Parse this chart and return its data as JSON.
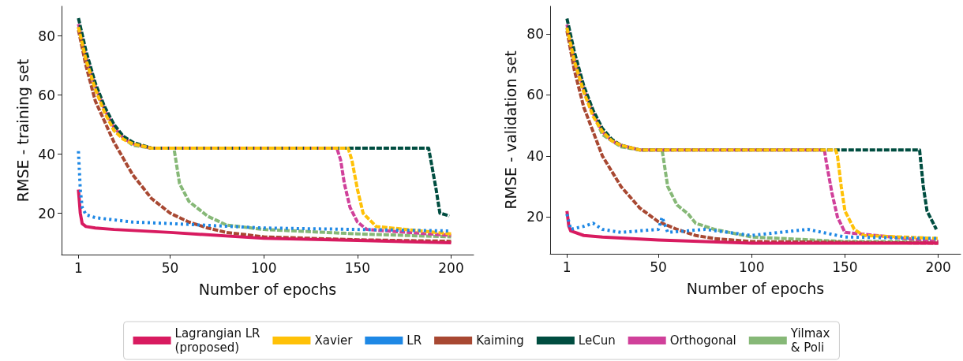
{
  "chart_data": [
    {
      "type": "line",
      "xlabel": "Number of epochs",
      "ylabel": "RMSE - training set",
      "xlim": [
        -8,
        212
      ],
      "ylim": [
        6,
        90
      ],
      "xticks": [
        1,
        50,
        100,
        150,
        200
      ],
      "yticks": [
        20,
        40,
        60,
        80
      ],
      "grid": false,
      "legend": "bottom",
      "marker": "none",
      "series": [
        {
          "name": "Lagrangian LR\n(proposed)",
          "color": "#d81b60",
          "line_style": "solid",
          "x": [
            1,
            2,
            3,
            5,
            10,
            20,
            50,
            100,
            150,
            200
          ],
          "values": [
            28,
            20,
            16.5,
            15.5,
            15,
            14.5,
            13.5,
            11.5,
            10.8,
            10
          ]
        },
        {
          "name": "Xavier",
          "color": "#ffc107",
          "line_style": "dashed",
          "x": [
            1,
            5,
            10,
            15,
            20,
            25,
            30,
            40,
            145,
            147,
            150,
            153,
            160,
            200
          ],
          "values": [
            83,
            72,
            62,
            54,
            48,
            45,
            43.5,
            42,
            42,
            38,
            28,
            20,
            15.5,
            13
          ]
        },
        {
          "name": "LR",
          "color": "#1e88e5",
          "line_style": "dotted",
          "x": [
            1,
            2,
            3,
            5,
            10,
            30,
            50,
            100,
            150,
            200
          ],
          "values": [
            41,
            28,
            22,
            19.5,
            18.5,
            17,
            16.5,
            15,
            14.5,
            14
          ]
        },
        {
          "name": "Kaiming",
          "color": "#a84832",
          "line_style": "dashed",
          "x": [
            1,
            5,
            10,
            20,
            30,
            40,
            50,
            60,
            70,
            80,
            100,
            150,
            200
          ],
          "values": [
            82,
            70,
            58,
            44,
            33,
            25,
            20,
            17,
            15,
            13.5,
            12,
            11,
            10.5
          ]
        },
        {
          "name": "LeCun",
          "color": "#004d40",
          "line_style": "dashed",
          "x": [
            1,
            5,
            10,
            15,
            20,
            25,
            30,
            40,
            188,
            190,
            192,
            194,
            197,
            199
          ],
          "values": [
            86,
            75,
            64,
            56,
            50,
            46,
            44,
            42,
            42,
            35,
            28,
            20,
            19.5,
            19
          ]
        },
        {
          "name": "Orthogonal",
          "color": "#d0409a",
          "line_style": "dashed",
          "x": [
            1,
            5,
            10,
            15,
            20,
            25,
            30,
            40,
            139,
            141,
            143,
            146,
            150,
            155,
            200
          ],
          "values": [
            84,
            73,
            63,
            55,
            49,
            45.5,
            43.5,
            42,
            42,
            38,
            30,
            22,
            17,
            14.5,
            12.5
          ]
        },
        {
          "name": "Yilmax\n& Poli",
          "color": "#86b877",
          "line_style": "dashed",
          "x": [
            1,
            5,
            10,
            20,
            30,
            40,
            52,
            53,
            55,
            60,
            70,
            80,
            100,
            150,
            200
          ],
          "values": [
            83,
            72,
            62,
            48,
            43,
            42,
            42,
            38,
            30,
            24,
            19,
            16,
            14.5,
            13,
            12
          ]
        }
      ]
    },
    {
      "type": "line",
      "xlabel": "Number of epochs",
      "ylabel": "RMSE - validation set",
      "xlim": [
        -8,
        212
      ],
      "ylim": [
        8,
        89
      ],
      "xticks": [
        1,
        50,
        100,
        150,
        200
      ],
      "yticks": [
        20,
        40,
        60,
        80
      ],
      "grid": false,
      "legend": false,
      "marker": "none",
      "series": [
        {
          "color": "#d81b60",
          "line_style": "solid",
          "x": [
            1,
            2,
            3,
            10,
            20,
            50,
            100,
            150,
            200
          ],
          "values": [
            22,
            17,
            15.5,
            14,
            13.5,
            12.5,
            11.5,
            11.5,
            11.5
          ]
        },
        {
          "color": "#ffc107",
          "line_style": "dashed",
          "x": [
            1,
            5,
            10,
            15,
            20,
            25,
            30,
            40,
            145,
            146,
            148,
            150,
            155,
            160,
            200
          ],
          "values": [
            82,
            71,
            61,
            53,
            48,
            45,
            43.5,
            42,
            42,
            40,
            30,
            22,
            16,
            14,
            13
          ]
        },
        {
          "color": "#1e88e5",
          "line_style": "dotted",
          "x": [
            1,
            3,
            10,
            15,
            20,
            30,
            50,
            52,
            55,
            75,
            100,
            130,
            150,
            200
          ],
          "values": [
            21,
            16,
            17,
            18,
            16,
            15,
            16,
            20,
            15,
            16,
            14,
            16,
            13.5,
            13
          ]
        },
        {
          "color": "#a84832",
          "line_style": "dashed",
          "x": [
            1,
            5,
            10,
            20,
            30,
            40,
            50,
            60,
            70,
            80,
            100,
            200
          ],
          "values": [
            81,
            68,
            56,
            40,
            30,
            23,
            18.5,
            16,
            14,
            13,
            12,
            11.5
          ]
        },
        {
          "color": "#004d40",
          "line_style": "dashed",
          "x": [
            1,
            5,
            10,
            15,
            20,
            25,
            30,
            40,
            190,
            191,
            192,
            194,
            199
          ],
          "values": [
            85,
            74,
            63,
            55,
            49,
            45.5,
            43.5,
            42,
            42,
            36,
            30,
            22,
            16
          ]
        },
        {
          "color": "#d0409a",
          "line_style": "dashed",
          "x": [
            1,
            5,
            10,
            15,
            20,
            25,
            30,
            40,
            139,
            140,
            143,
            146,
            150,
            200
          ],
          "values": [
            83,
            72,
            62,
            54,
            48,
            45,
            43.5,
            42,
            42,
            38,
            28,
            20,
            15,
            12
          ]
        },
        {
          "color": "#86b877",
          "line_style": "dashed",
          "x": [
            1,
            5,
            10,
            20,
            30,
            40,
            52,
            53,
            55,
            60,
            66,
            70,
            80,
            100,
            150,
            200
          ],
          "values": [
            82,
            71,
            61,
            47,
            43,
            42,
            42,
            38,
            30,
            24,
            21,
            18,
            16,
            13.5,
            12,
            12
          ]
        }
      ]
    }
  ]
}
